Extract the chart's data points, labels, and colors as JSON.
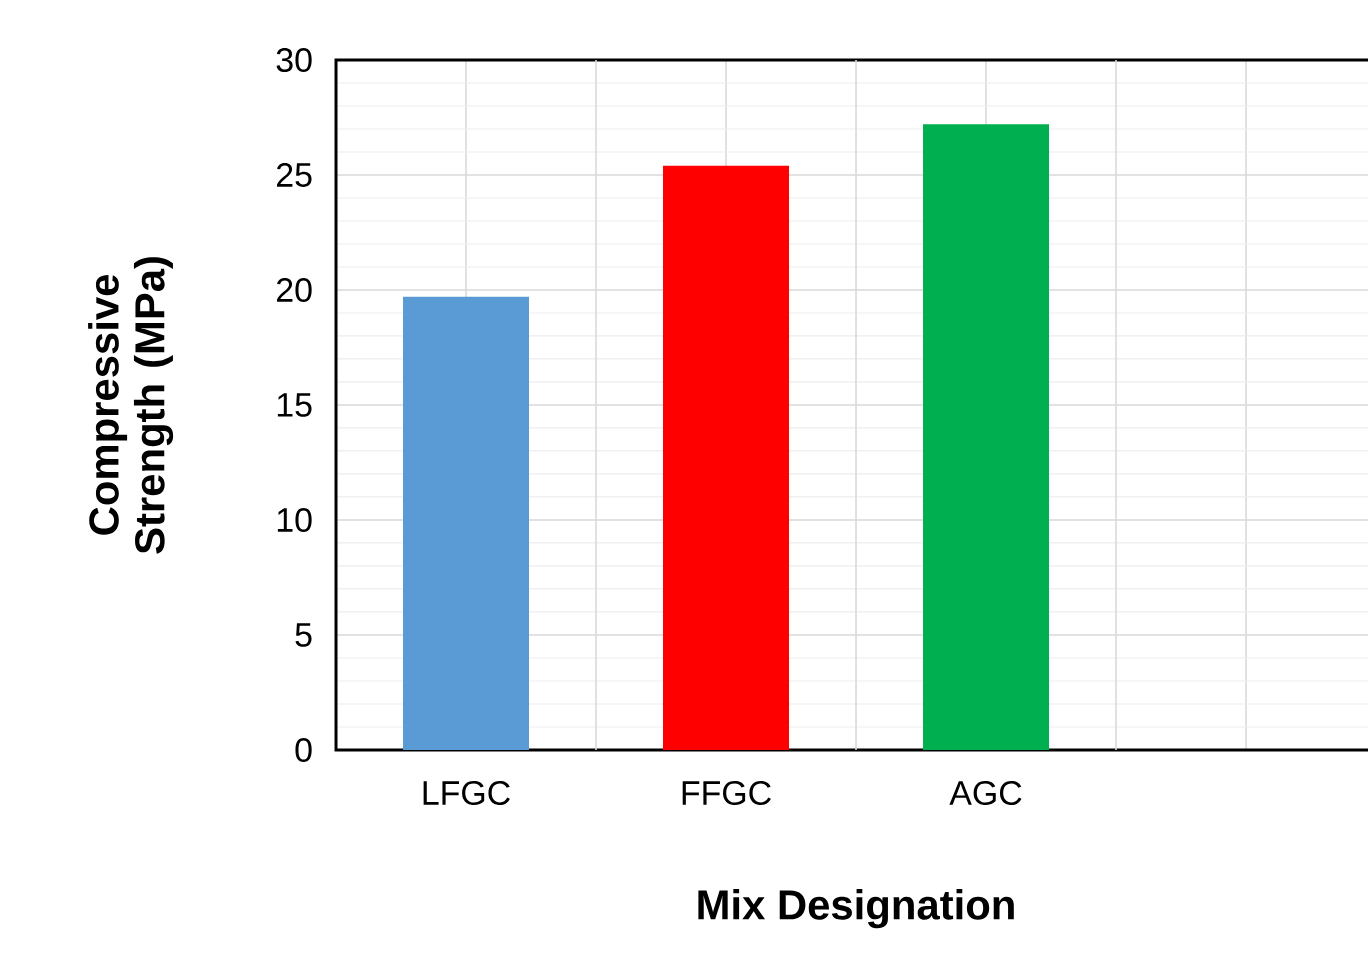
{
  "chart_data": {
    "type": "bar",
    "xlabel": "Mix Designation",
    "ylabel": "Compressive Strength (MPa)",
    "categories": [
      "LFGC",
      "FFGC",
      "AGC",
      null,
      null
    ],
    "values": [
      19.7,
      25.4,
      27.2,
      null,
      null
    ],
    "colors": [
      "#5b9bd5",
      "#ff0000",
      "#00b050",
      "#a5a5a5",
      "#ffc000"
    ],
    "ylim": [
      0,
      30
    ],
    "yticks": [
      0,
      5,
      10,
      15,
      20,
      25,
      30
    ],
    "grid": true
  }
}
